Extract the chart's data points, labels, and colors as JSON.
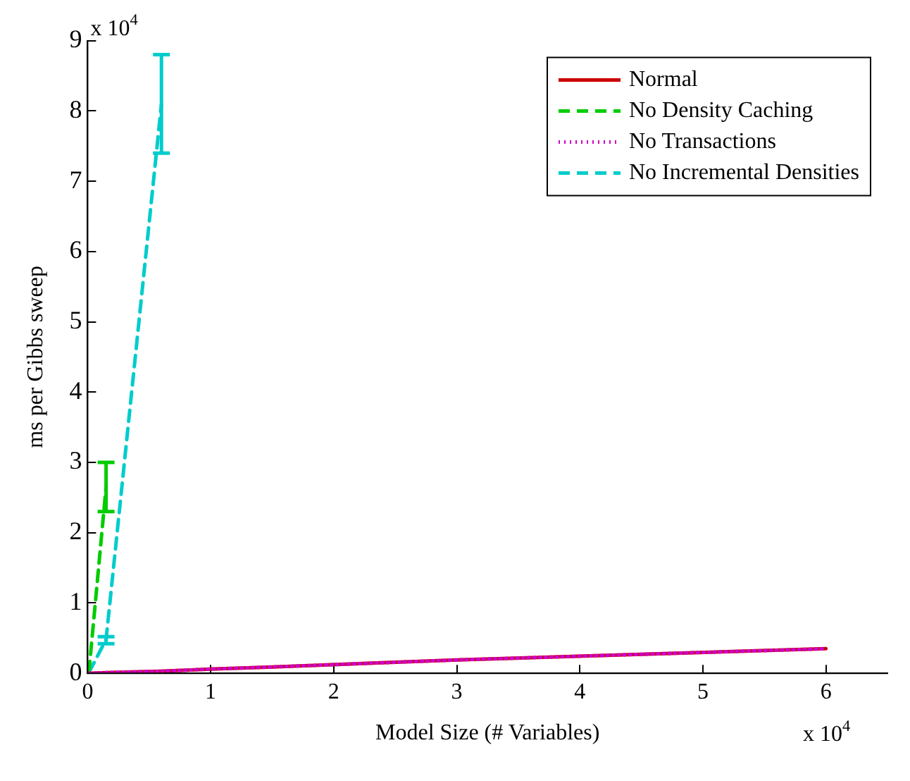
{
  "chart_data": {
    "type": "line",
    "xlabel": "Model Size (# Variables)",
    "ylabel": "ms per Gibbs sweep",
    "annotations": [
      "x 10$^{4}$",
      "x 10$^{4}$"
    ],
    "xlim": [
      0,
      6.5
    ],
    "ylim": [
      0,
      9
    ],
    "xticks": [
      0,
      1,
      2,
      3,
      4,
      5,
      6
    ],
    "yticks": [
      0,
      1,
      2,
      3,
      4,
      5,
      6,
      7,
      8,
      9
    ],
    "grid": false,
    "legend": "top right",
    "marker": "none",
    "series": [
      {
        "name": "Normal",
        "color": "#cc0000",
        "line_style": "solid",
        "x": [
          0.01,
          0.15,
          0.6,
          1,
          1.5,
          3,
          6
        ],
        "values": [
          0,
          0.01,
          0.03,
          0.06,
          0.09,
          0.19,
          0.35
        ]
      },
      {
        "name": "No Density Caching",
        "color": "#00cc00",
        "line_style": "dashed",
        "x": [
          0.01,
          0.15
        ],
        "values": [
          0.01,
          2.65
        ],
        "errors": [
          null,
          [
            2.3,
            3.0
          ]
        ]
      },
      {
        "name": "No Transactions",
        "color": "#cc00cc",
        "line_style": "dotted",
        "x": [
          0.01,
          0.15,
          0.6,
          1,
          1.5,
          3,
          6
        ],
        "values": [
          0,
          0.01,
          0.03,
          0.06,
          0.09,
          0.19,
          0.35
        ]
      },
      {
        "name": "No Incremental Densities",
        "color": "#00cccc",
        "line_style": "dashed",
        "x": [
          0.01,
          0.15,
          0.6
        ],
        "values": [
          0.01,
          0.48,
          8.1
        ],
        "errors": [
          null,
          [
            0.42,
            0.52
          ],
          [
            7.4,
            8.8
          ]
        ]
      }
    ]
  }
}
